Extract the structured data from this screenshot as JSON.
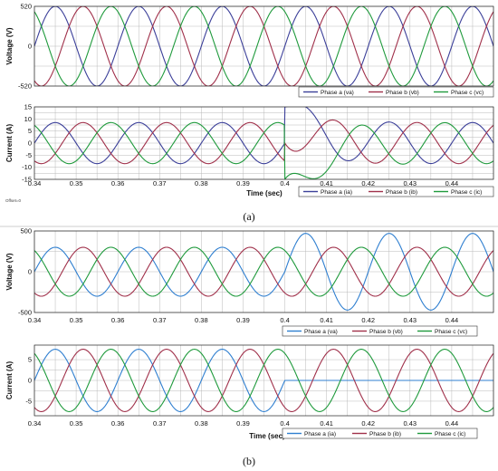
{
  "figure": {
    "caption_a": "(a)",
    "caption_b": "(b)",
    "offset_note": "Offset=0"
  },
  "chart_data": [
    {
      "id": "a_voltage",
      "type": "line",
      "ylabel": "Voltage  (V)",
      "yticks": [
        "520",
        "0",
        "-520"
      ],
      "ytick_values": [
        520,
        0,
        -520
      ],
      "ylim": [
        -520,
        520
      ],
      "xlim": [
        0.34,
        0.45
      ],
      "xticks": [],
      "xlabel": "",
      "grid": true,
      "legend": "bottom-right",
      "series": [
        {
          "name": "Phase a (va)",
          "color": "#3b3f99",
          "amp_before": 520,
          "amp_after": 520,
          "phase_deg": 0
        },
        {
          "name": "Phase b (vb)",
          "color": "#a0304a",
          "amp_before": 520,
          "amp_after": 520,
          "phase_deg": -120
        },
        {
          "name": "Phase c (vc)",
          "color": "#1f9a3c",
          "amp_before": 520,
          "amp_after": 520,
          "phase_deg": 120
        }
      ],
      "frequency_hz": 50,
      "event_time": 0.4
    },
    {
      "id": "a_current",
      "type": "line",
      "ylabel": "Current  (A)",
      "yticks": [
        "15",
        "10",
        "5",
        "0",
        "-5",
        "-10",
        "-15"
      ],
      "ytick_values": [
        15,
        10,
        5,
        0,
        -5,
        -10,
        -15
      ],
      "ylim": [
        -15,
        15
      ],
      "xlim": [
        0.34,
        0.45
      ],
      "xticks": [
        "0.34",
        "0.35",
        "0.36",
        "0.37",
        "0.38",
        "0.39",
        "0.4",
        "0.41",
        "0.42",
        "0.43",
        "0.44"
      ],
      "xtick_values": [
        0.34,
        0.35,
        0.36,
        0.37,
        0.38,
        0.39,
        0.4,
        0.41,
        0.42,
        0.43,
        0.44
      ],
      "xlabel": "Time  (sec)",
      "grid": true,
      "legend": "bottom-right",
      "series": [
        {
          "name": "Phase a (ia)",
          "color": "#3b3f99",
          "amp_before": 8.5,
          "amp_after": 8.5,
          "phase_deg": 0
        },
        {
          "name": "Phase b (ib)",
          "color": "#a0304a",
          "amp_before": 8.5,
          "amp_after": 8.5,
          "phase_deg": -120
        },
        {
          "name": "Phase c (ic)",
          "color": "#1f9a3c",
          "amp_before": 8.5,
          "amp_after": 8.5,
          "phase_deg": 120
        }
      ],
      "frequency_hz": 50,
      "event_time": 0.4,
      "transient": "step to about 15 A / -15 A at t = 0.4 s"
    },
    {
      "id": "b_voltage",
      "type": "line",
      "ylabel": "Voltage  (V)",
      "yticks": [
        "500",
        "0",
        "-500"
      ],
      "ytick_values": [
        500,
        0,
        -500
      ],
      "ylim": [
        -500,
        500
      ],
      "xlim": [
        0.34,
        0.45
      ],
      "xticks": [
        "0.34",
        "0.35",
        "0.36",
        "0.37",
        "0.38",
        "0.39",
        "0.4",
        "0.41",
        "0.42",
        "0.43",
        "0.44"
      ],
      "xtick_values": [
        0.34,
        0.35,
        0.36,
        0.37,
        0.38,
        0.39,
        0.4,
        0.41,
        0.42,
        0.43,
        0.44
      ],
      "xlabel": "",
      "grid": true,
      "legend": "bottom-right",
      "series": [
        {
          "name": "Phase a (va)",
          "color": "#2f7fd0",
          "amp_before": 300,
          "amp_after": 470,
          "phase_deg": 0
        },
        {
          "name": "Phase b (vb)",
          "color": "#a0304a",
          "amp_before": 300,
          "amp_after": 300,
          "phase_deg": -120
        },
        {
          "name": "Phase c (vc)",
          "color": "#1f9a3c",
          "amp_before": 300,
          "amp_after": 300,
          "phase_deg": 120
        }
      ],
      "frequency_hz": 50,
      "event_time": 0.4
    },
    {
      "id": "b_current",
      "type": "line",
      "ylabel": "Current  (A)",
      "yticks": [
        "5",
        "0",
        "-5"
      ],
      "ytick_values": [
        5,
        0,
        -5
      ],
      "ylim": [
        -8.5,
        8.5
      ],
      "xlim": [
        0.34,
        0.45
      ],
      "xticks": [
        "0.34",
        "0.35",
        "0.36",
        "0.37",
        "0.38",
        "0.39",
        "0.4",
        "0.41",
        "0.42",
        "0.43",
        "0.44"
      ],
      "xtick_values": [
        0.34,
        0.35,
        0.36,
        0.37,
        0.38,
        0.39,
        0.4,
        0.41,
        0.42,
        0.43,
        0.44
      ],
      "xlabel": "Time  (sec)",
      "grid": true,
      "legend": "bottom-right",
      "series": [
        {
          "name": "Phase a (ia)",
          "color": "#2f7fd0",
          "amp_before": 7.5,
          "amp_after": 0,
          "phase_deg": 0
        },
        {
          "name": "Phase b (ib)",
          "color": "#a0304a",
          "amp_before": 7.5,
          "amp_after": 7.5,
          "phase_deg": -120
        },
        {
          "name": "Phase c (ic)",
          "color": "#1f9a3c",
          "amp_before": 7.5,
          "amp_after": 7.5,
          "phase_deg": 120
        }
      ],
      "frequency_hz": 50,
      "event_time": 0.4
    }
  ]
}
